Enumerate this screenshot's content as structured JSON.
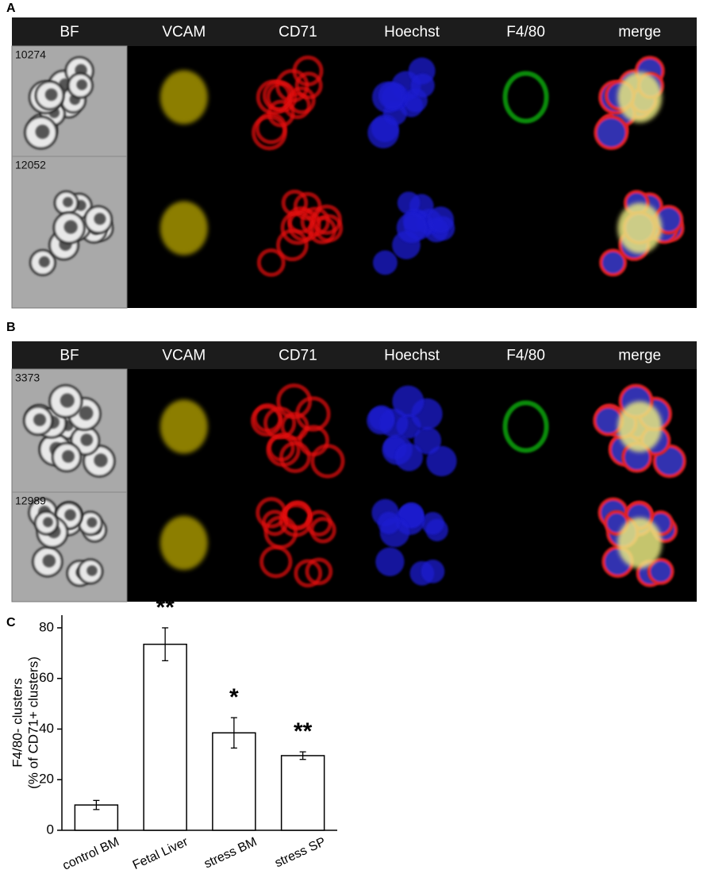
{
  "panels": [
    {
      "label": "A",
      "columns": [
        "BF",
        "VCAM",
        "CD71",
        "Hoechst",
        "F4/80",
        "merge"
      ],
      "rows": [
        "10274",
        "12052"
      ]
    },
    {
      "label": "B",
      "columns": [
        "BF",
        "VCAM",
        "CD71",
        "Hoechst",
        "F4/80",
        "merge"
      ],
      "rows": [
        "3373",
        "12989"
      ]
    }
  ],
  "chart_data": {
    "type": "bar",
    "panel_label": "C",
    "y_label": [
      "F4/80- clusters",
      "(% of CD71+ clusters)"
    ],
    "categories": [
      "control BM",
      "Fetal Liver",
      "stress BM",
      "stress SP"
    ],
    "values": [
      10,
      73.5,
      38.5,
      29.5
    ],
    "errors": [
      1.8,
      6.5,
      6,
      1.5
    ],
    "significance": [
      null,
      "**",
      "*",
      "**"
    ],
    "color": "#ffffff",
    "ylim": [
      0,
      85
    ],
    "yticks": [
      0,
      20,
      40,
      60,
      80
    ]
  }
}
